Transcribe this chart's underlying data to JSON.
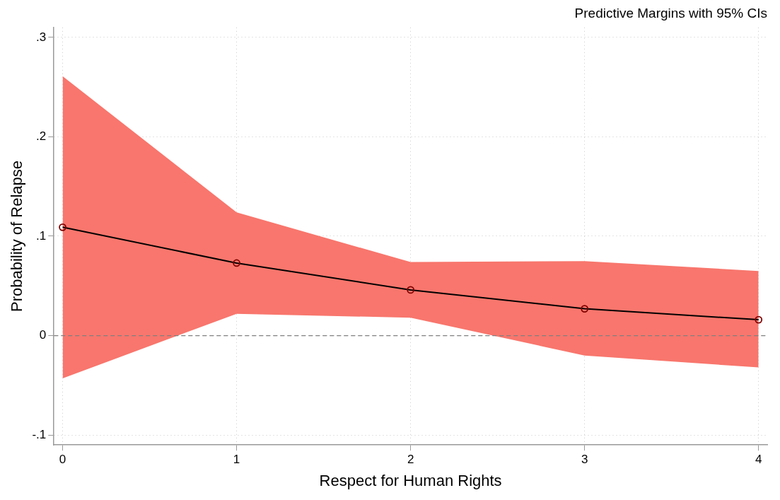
{
  "chart_data": {
    "type": "line",
    "title": "Predictive Margins with 95% CIs",
    "xlabel": "Respect for Human Rights",
    "ylabel": "Probability of Relapse",
    "x": [
      0,
      1,
      2,
      3,
      4
    ],
    "series": [
      {
        "color": "#000000",
        "values": [
          0.109,
          0.073,
          0.046,
          0.027,
          0.016
        ],
        "lower": [
          -0.043,
          0.022,
          0.018,
          -0.02,
          -0.032
        ],
        "upper": [
          0.261,
          0.124,
          0.074,
          0.075,
          0.065
        ]
      }
    ],
    "xlim": [
      -0.05,
      4.05
    ],
    "ylim": [
      -0.11,
      0.31
    ],
    "xticks": [
      0,
      1,
      2,
      3,
      4
    ],
    "yticks": [
      {
        "value": -0.1,
        "label": "-.1"
      },
      0,
      {
        "value": 0.1,
        "label": ".1"
      },
      {
        "value": 0.2,
        "label": ".2"
      },
      {
        "value": 0.3,
        "label": ".3"
      }
    ],
    "ref_lines": [
      {
        "axis": "y",
        "value": 0,
        "line_style": "dashed",
        "color": "#808080"
      }
    ],
    "grid": true,
    "legend": false,
    "marker": "circle",
    "line_style": "solid"
  }
}
